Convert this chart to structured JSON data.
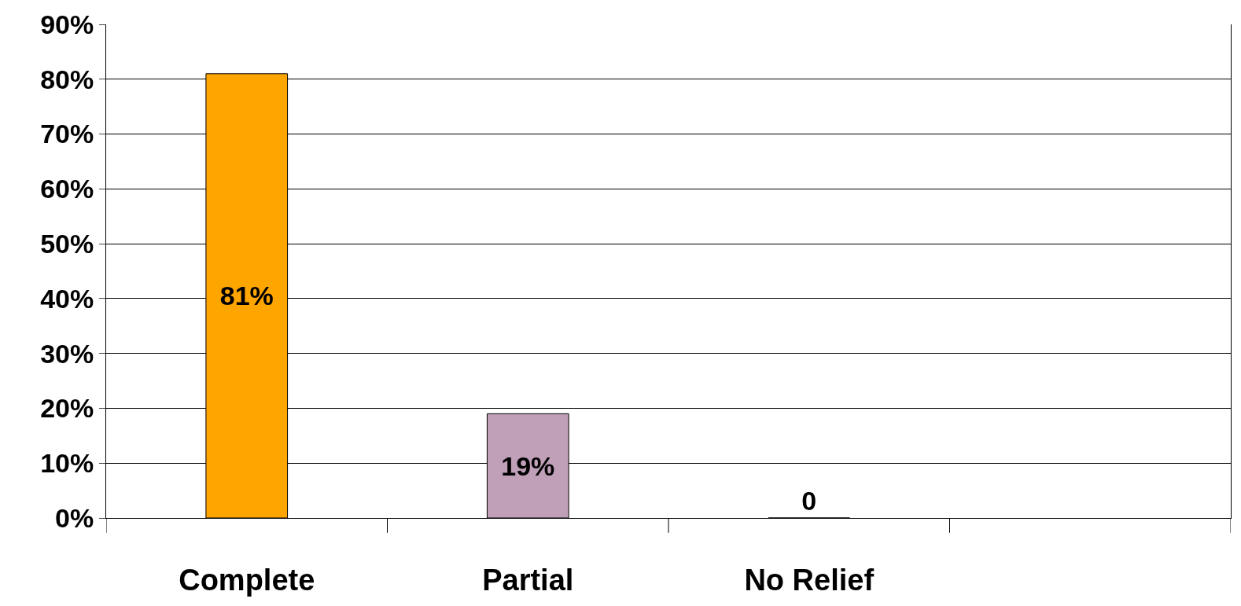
{
  "chart_data": {
    "type": "bar",
    "categories": [
      "Complete",
      "Partial",
      "No Relief",
      null
    ],
    "values": [
      81,
      19,
      0,
      null
    ],
    "colors": [
      "#ffa500",
      "#c0a0b8",
      "#000000",
      "#000000"
    ],
    "value_labels": [
      "81%",
      "19%",
      "0",
      null
    ],
    "ylim": [
      0,
      90
    ],
    "yticks": [
      {
        "value": 0,
        "label": "0%"
      },
      {
        "value": 10,
        "label": "10%"
      },
      {
        "value": 20,
        "label": "20%"
      },
      {
        "value": 30,
        "label": "30%"
      },
      {
        "value": 40,
        "label": "40%"
      },
      {
        "value": 50,
        "label": "50%"
      },
      {
        "value": 60,
        "label": "60%"
      },
      {
        "value": 70,
        "label": "70%"
      },
      {
        "value": 80,
        "label": "80%"
      },
      {
        "value": 90,
        "label": "90%"
      }
    ],
    "grid": "y"
  }
}
